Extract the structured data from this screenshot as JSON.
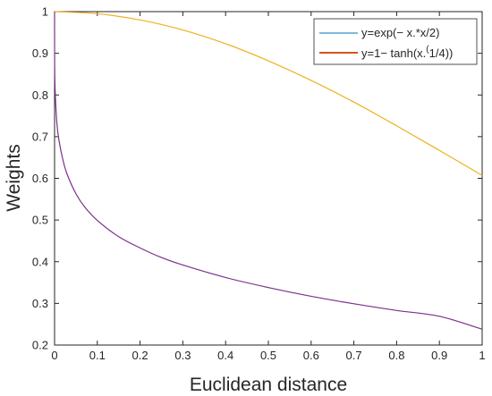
{
  "chart_data": {
    "type": "line",
    "title": "",
    "xlabel": "Euclidean distance",
    "ylabel": "Weights",
    "xlim": [
      0,
      1
    ],
    "ylim": [
      0.2,
      1
    ],
    "grid": false,
    "legend_position": "top-right",
    "x_ticks": [
      0,
      0.1,
      0.2,
      0.3,
      0.4,
      0.5,
      0.6,
      0.7,
      0.8,
      0.9,
      1
    ],
    "x_tick_labels": [
      "0",
      "0.1",
      "0.2",
      "0.3",
      "0.4",
      "0.5",
      "0.6",
      "0.7",
      "0.8",
      "0.9",
      "1"
    ],
    "y_ticks": [
      0.2,
      0.3,
      0.4,
      0.5,
      0.6,
      0.7,
      0.8,
      0.9,
      1
    ],
    "y_tick_labels": [
      "0.2",
      "0.3",
      "0.4",
      "0.5",
      "0.6",
      "0.7",
      "0.8",
      "0.9",
      "1"
    ],
    "legend": [
      {
        "prefix": "y=exp(− x.*x/2)",
        "superscript": "",
        "suffix": "",
        "color": "#0072BD"
      },
      {
        "prefix": "y=1− tanh(x.",
        "superscript": "(",
        "suffix": "1/4))",
        "color": "#D95319"
      }
    ],
    "series": [
      {
        "color": "#EDB120",
        "x": [
          0,
          0.1,
          0.2,
          0.3,
          0.4,
          0.5,
          0.6,
          0.7,
          0.8,
          0.9,
          1
        ],
        "y": [
          1,
          0.995,
          0.98,
          0.956,
          0.923,
          0.882,
          0.835,
          0.783,
          0.726,
          0.667,
          0.607
        ]
      },
      {
        "color": "#7E2F8E",
        "x": [
          0,
          0.0001,
          0.001,
          0.005,
          0.01,
          0.02,
          0.03,
          0.05,
          0.07,
          0.1,
          0.15,
          0.2,
          0.25,
          0.3,
          0.4,
          0.5,
          0.6,
          0.7,
          0.8,
          0.9,
          1
        ],
        "y": [
          1,
          0.9,
          0.822,
          0.738,
          0.693,
          0.642,
          0.608,
          0.563,
          0.532,
          0.499,
          0.46,
          0.433,
          0.41,
          0.392,
          0.362,
          0.338,
          0.317,
          0.299,
          0.283,
          0.269,
          0.238
        ]
      }
    ]
  }
}
